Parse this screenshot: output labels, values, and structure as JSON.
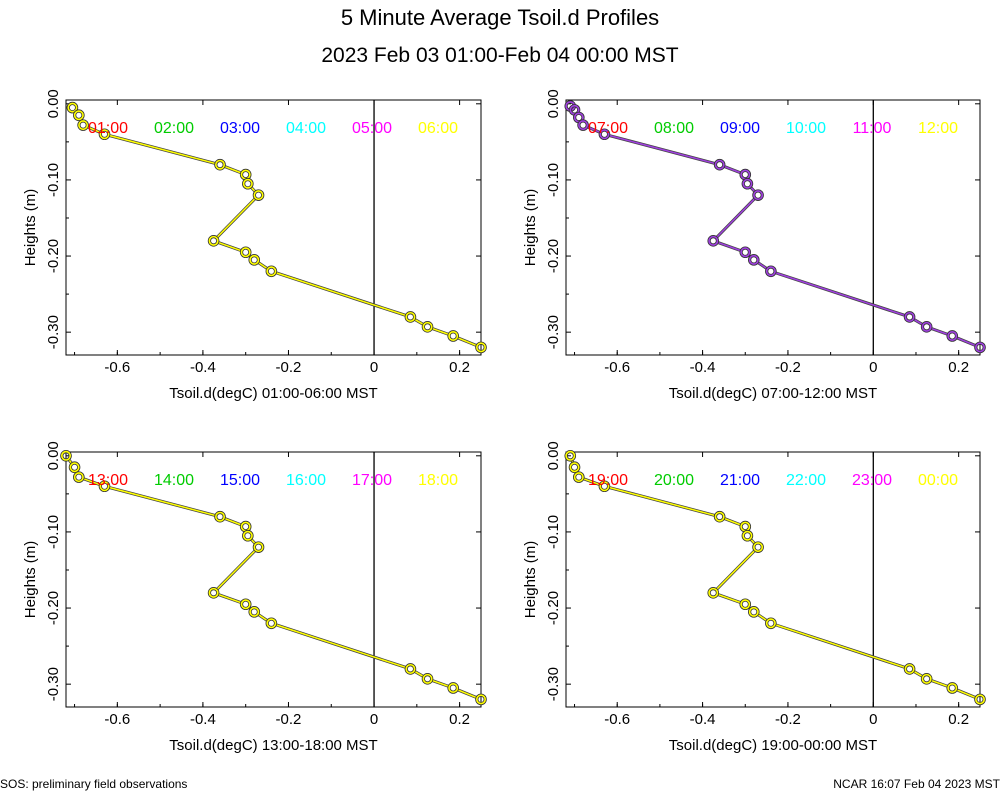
{
  "title": "5 Minute Average Tsoil.d Profiles",
  "subtitle": "2023 Feb 03 01:00-Feb 04 00:00 MST",
  "footer_left": "SOS: preliminary field observations",
  "footer_right": "NCAR 16:07 Feb 04 2023 MST",
  "chart_data": [
    {
      "type": "line",
      "xlabel": "Tsoil.d(degC) 01:00-06:00 MST",
      "ylabel": "Heights (m)",
      "xlim": [
        -0.72,
        0.25
      ],
      "ylim": [
        -0.33,
        0.005
      ],
      "xticks": [
        "-0.6",
        "-0.4",
        "-0.2",
        "0",
        "0.2"
      ],
      "yticks": [
        "0.00",
        "-0.10",
        "-0.20",
        "-0.30"
      ],
      "series": [
        {
          "name": "01:00",
          "color": "#ff0000"
        },
        {
          "name": "02:00",
          "color": "#00cc00"
        },
        {
          "name": "03:00",
          "color": "#0000ff"
        },
        {
          "name": "04:00",
          "color": "#00ffff"
        },
        {
          "name": "05:00",
          "color": "#ff00ff"
        },
        {
          "name": "06:00",
          "color": "#ffff00"
        }
      ],
      "profile": {
        "x": [
          -0.705,
          -0.69,
          -0.68,
          -0.63,
          -0.36,
          -0.3,
          -0.295,
          -0.27,
          -0.375,
          -0.3,
          -0.28,
          -0.24,
          0.085,
          0.125,
          0.185,
          0.25
        ],
        "y": [
          -0.005,
          -0.015,
          -0.028,
          -0.04,
          -0.08,
          -0.093,
          -0.105,
          -0.12,
          -0.18,
          -0.195,
          -0.205,
          -0.22,
          -0.28,
          -0.293,
          -0.305,
          -0.32
        ]
      },
      "line_color": "#ffff00",
      "marker_color": "#ffff00"
    },
    {
      "type": "line",
      "xlabel": "Tsoil.d(degC) 07:00-12:00 MST",
      "ylabel": "Heights (m)",
      "xlim": [
        -0.72,
        0.25
      ],
      "ylim": [
        -0.33,
        0.005
      ],
      "xticks": [
        "-0.6",
        "-0.4",
        "-0.2",
        "0",
        "0.2"
      ],
      "yticks": [
        "0.00",
        "-0.10",
        "-0.20",
        "-0.30"
      ],
      "series": [
        {
          "name": "07:00",
          "color": "#ff0000"
        },
        {
          "name": "08:00",
          "color": "#00cc00"
        },
        {
          "name": "09:00",
          "color": "#0000ff"
        },
        {
          "name": "10:00",
          "color": "#00ffff"
        },
        {
          "name": "11:00",
          "color": "#ff00ff"
        },
        {
          "name": "12:00",
          "color": "#ffff00"
        }
      ],
      "profile": {
        "x": [
          -0.71,
          -0.7,
          -0.69,
          -0.68,
          -0.63,
          -0.36,
          -0.3,
          -0.295,
          -0.27,
          -0.375,
          -0.3,
          -0.28,
          -0.24,
          0.085,
          0.125,
          0.185,
          0.25
        ],
        "y": [
          -0.003,
          -0.008,
          -0.018,
          -0.028,
          -0.04,
          -0.08,
          -0.093,
          -0.105,
          -0.12,
          -0.18,
          -0.195,
          -0.205,
          -0.22,
          -0.28,
          -0.293,
          -0.305,
          -0.32
        ]
      },
      "line_color": "#a040e0",
      "marker_color": "#a040e0"
    },
    {
      "type": "line",
      "xlabel": "Tsoil.d(degC) 13:00-18:00 MST",
      "ylabel": "Heights (m)",
      "xlim": [
        -0.72,
        0.25
      ],
      "ylim": [
        -0.33,
        0.005
      ],
      "xticks": [
        "-0.6",
        "-0.4",
        "-0.2",
        "0",
        "0.2"
      ],
      "yticks": [
        "0.00",
        "-0.10",
        "-0.20",
        "-0.30"
      ],
      "series": [
        {
          "name": "13:00",
          "color": "#ff0000"
        },
        {
          "name": "14:00",
          "color": "#00cc00"
        },
        {
          "name": "15:00",
          "color": "#0000ff"
        },
        {
          "name": "16:00",
          "color": "#00ffff"
        },
        {
          "name": "17:00",
          "color": "#ff00ff"
        },
        {
          "name": "18:00",
          "color": "#ffff00"
        }
      ],
      "profile": {
        "x": [
          -0.72,
          -0.7,
          -0.69,
          -0.63,
          -0.36,
          -0.3,
          -0.295,
          -0.27,
          -0.375,
          -0.3,
          -0.28,
          -0.24,
          0.085,
          0.125,
          0.185,
          0.25
        ],
        "y": [
          0.0,
          -0.015,
          -0.028,
          -0.04,
          -0.08,
          -0.093,
          -0.105,
          -0.12,
          -0.18,
          -0.195,
          -0.205,
          -0.22,
          -0.28,
          -0.293,
          -0.305,
          -0.32
        ]
      },
      "line_color": "#ffff00",
      "marker_color": "#ffff00"
    },
    {
      "type": "line",
      "xlabel": "Tsoil.d(degC) 19:00-00:00 MST",
      "ylabel": "Heights (m)",
      "xlim": [
        -0.72,
        0.25
      ],
      "ylim": [
        -0.33,
        0.005
      ],
      "xticks": [
        "-0.6",
        "-0.4",
        "-0.2",
        "0",
        "0.2"
      ],
      "yticks": [
        "0.00",
        "-0.10",
        "-0.20",
        "-0.30"
      ],
      "series": [
        {
          "name": "19:00",
          "color": "#ff0000"
        },
        {
          "name": "20:00",
          "color": "#00cc00"
        },
        {
          "name": "21:00",
          "color": "#0000ff"
        },
        {
          "name": "22:00",
          "color": "#00ffff"
        },
        {
          "name": "23:00",
          "color": "#ff00ff"
        },
        {
          "name": "00:00",
          "color": "#ffff00"
        }
      ],
      "profile": {
        "x": [
          -0.71,
          -0.7,
          -0.69,
          -0.63,
          -0.36,
          -0.3,
          -0.295,
          -0.27,
          -0.375,
          -0.3,
          -0.28,
          -0.24,
          0.085,
          0.125,
          0.185,
          0.25
        ],
        "y": [
          0.0,
          -0.015,
          -0.028,
          -0.04,
          -0.08,
          -0.093,
          -0.105,
          -0.12,
          -0.18,
          -0.195,
          -0.205,
          -0.22,
          -0.28,
          -0.293,
          -0.305,
          -0.32
        ]
      },
      "line_color": "#ffff00",
      "marker_color": "#ffff00"
    }
  ]
}
